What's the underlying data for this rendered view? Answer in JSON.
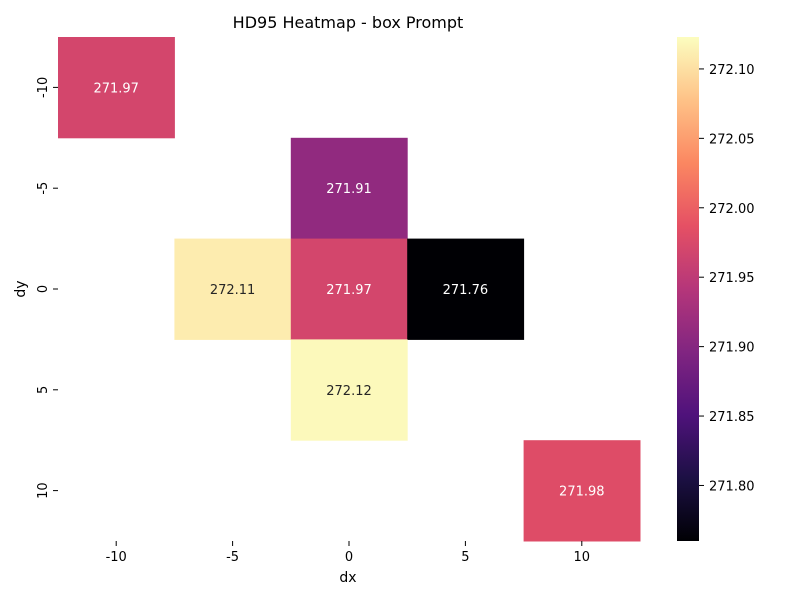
{
  "chart_data": {
    "type": "heatmap",
    "title": "HD95 Heatmap - box Prompt",
    "xlabel": "dx",
    "ylabel": "dy",
    "x_categories": [
      "-10",
      "-5",
      "0",
      "5",
      "10"
    ],
    "y_categories": [
      "-10",
      "-5",
      "0",
      "5",
      "10"
    ],
    "cells": [
      {
        "x": "-10",
        "y": "-10",
        "value": 271.97,
        "label": "271.97"
      },
      {
        "x": "0",
        "y": "-5",
        "value": 271.91,
        "label": "271.91"
      },
      {
        "x": "-5",
        "y": "0",
        "value": 272.11,
        "label": "272.11"
      },
      {
        "x": "0",
        "y": "0",
        "value": 271.97,
        "label": "271.97"
      },
      {
        "x": "5",
        "y": "0",
        "value": 271.76,
        "label": "271.76"
      },
      {
        "x": "0",
        "y": "5",
        "value": 272.12,
        "label": "272.12"
      },
      {
        "x": "10",
        "y": "10",
        "value": 271.98,
        "label": "271.98"
      }
    ],
    "colorbar": {
      "colormap": "magma",
      "vmin": 271.76,
      "vmax": 272.123,
      "ticks": [
        "271.80",
        "271.85",
        "271.90",
        "271.95",
        "272.00",
        "272.05",
        "272.10"
      ]
    },
    "grid": false
  }
}
